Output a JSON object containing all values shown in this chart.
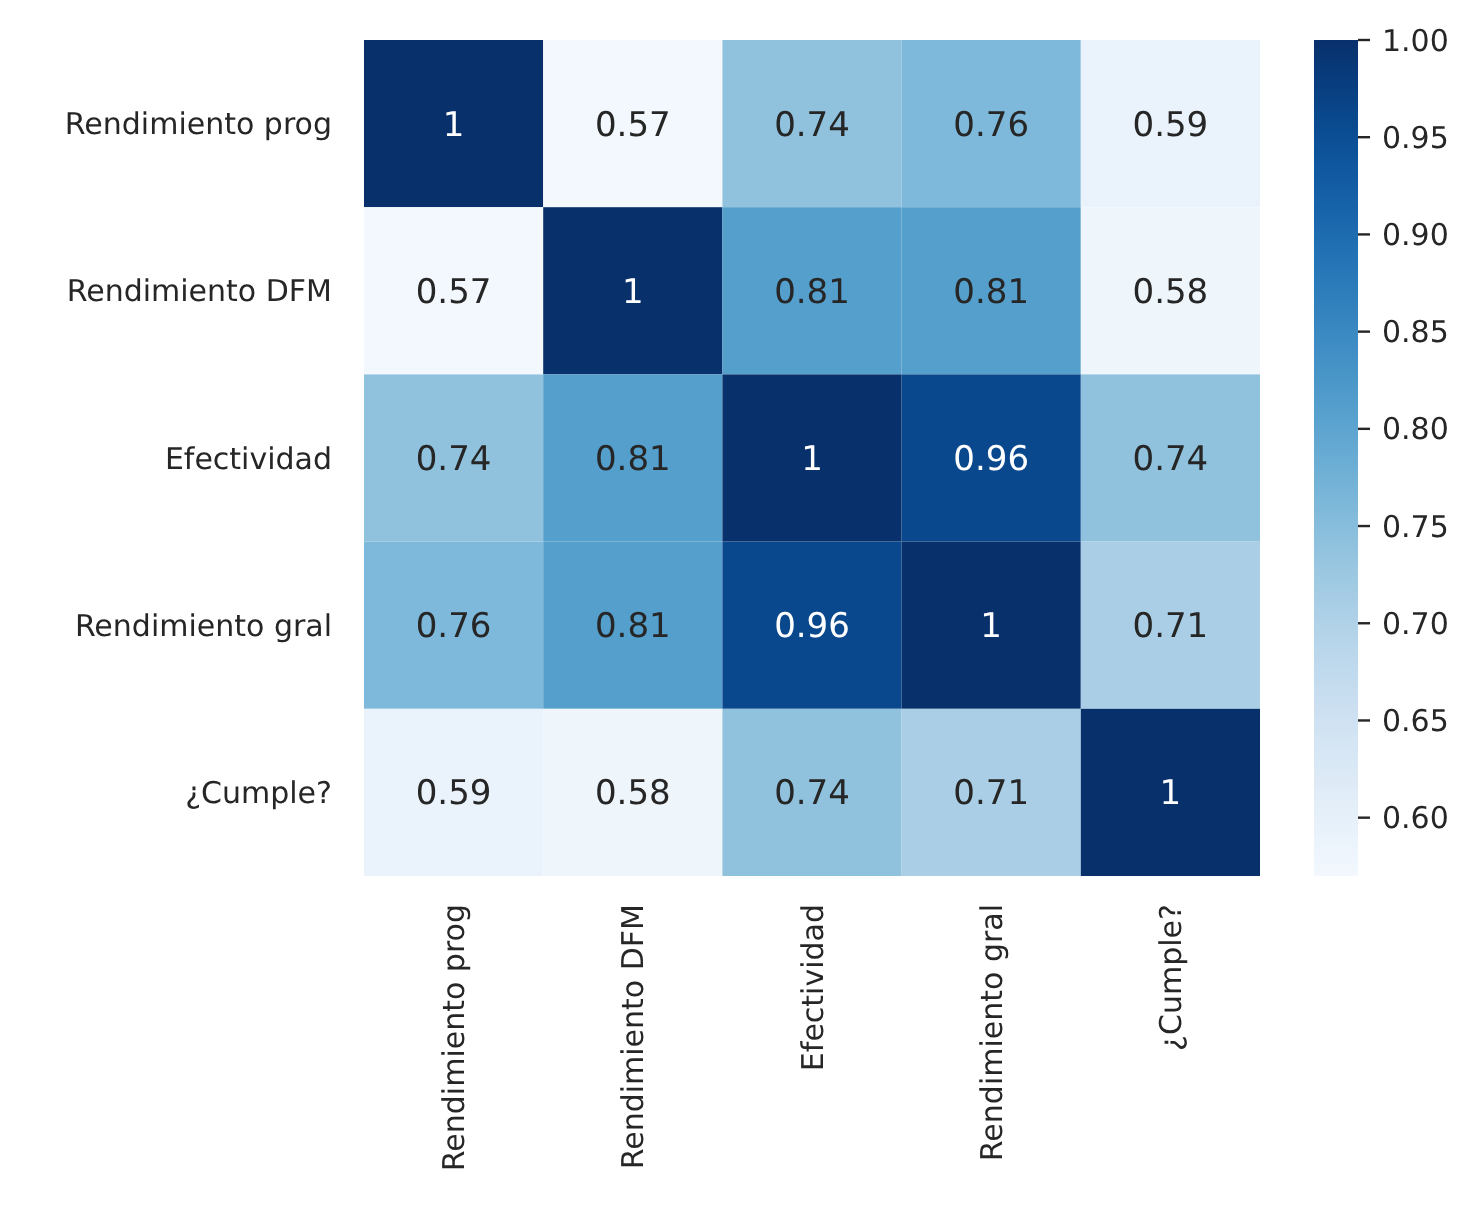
{
  "chart_data": {
    "type": "heatmap",
    "categories": [
      "Rendimiento prog",
      "Rendimiento DFM",
      "Efectividad",
      "Rendimiento gral",
      "¿Cumple?"
    ],
    "y_categories": [
      "Rendimiento prog",
      "Rendimiento DFM",
      "Efectividad",
      "Rendimiento gral",
      "¿Cumple?"
    ],
    "cells": [
      [
        1,
        0.57,
        0.74,
        0.76,
        0.59
      ],
      [
        0.57,
        1,
        0.81,
        0.81,
        0.58
      ],
      [
        0.74,
        0.81,
        1,
        0.96,
        0.74
      ],
      [
        0.76,
        0.81,
        0.96,
        1,
        0.71
      ],
      [
        0.59,
        0.58,
        0.74,
        0.71,
        1
      ]
    ],
    "data_labels": true,
    "clim": [
      0.57,
      1
    ],
    "cticks": [
      {
        "value": 0.6,
        "label": "0.60"
      },
      {
        "value": 0.65,
        "label": "0.65"
      },
      {
        "value": 0.7,
        "label": "0.70"
      },
      {
        "value": 0.75,
        "label": "0.75"
      },
      {
        "value": 0.8,
        "label": "0.80"
      },
      {
        "value": 0.85,
        "label": "0.85"
      },
      {
        "value": 0.9,
        "label": "0.90"
      },
      {
        "value": 0.95,
        "label": "0.95"
      },
      {
        "value": 1,
        "label": "1.00"
      }
    ]
  }
}
